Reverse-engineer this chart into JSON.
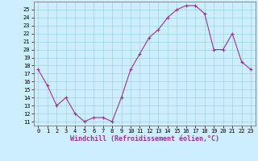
{
  "x": [
    0,
    1,
    2,
    3,
    4,
    5,
    6,
    7,
    8,
    9,
    10,
    11,
    12,
    13,
    14,
    15,
    16,
    17,
    18,
    19,
    20,
    21,
    22,
    23
  ],
  "y": [
    17.5,
    15.5,
    13.0,
    14.0,
    12.0,
    11.0,
    11.5,
    11.5,
    11.0,
    14.0,
    17.5,
    19.5,
    21.5,
    22.5,
    24.0,
    25.0,
    25.5,
    25.5,
    24.5,
    20.0,
    20.0,
    22.0,
    18.5,
    17.5
  ],
  "line_color": "#993399",
  "marker": "+",
  "bg_color": "#cceeff",
  "grid_color": "#99cccc",
  "xlabel": "Windchill (Refroidissement éolien,°C)",
  "ylim": [
    10.5,
    26.0
  ],
  "xlim": [
    -0.5,
    23.5
  ],
  "yticks": [
    11,
    12,
    13,
    14,
    15,
    16,
    17,
    18,
    19,
    20,
    21,
    22,
    23,
    24,
    25
  ],
  "xticks": [
    0,
    1,
    2,
    3,
    4,
    5,
    6,
    7,
    8,
    9,
    10,
    11,
    12,
    13,
    14,
    15,
    16,
    17,
    18,
    19,
    20,
    21,
    22,
    23
  ],
  "tick_fontsize": 5.0,
  "label_fontsize": 6.0,
  "linewidth": 0.8,
  "markersize": 3.5,
  "markeredgewidth": 0.8
}
